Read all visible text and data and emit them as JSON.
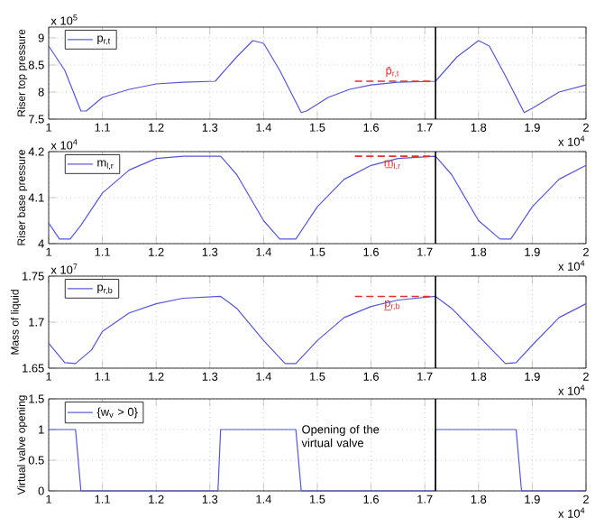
{
  "chart_data": [
    {
      "type": "line",
      "ylabel": "Riser top pressure",
      "xlim": [
        1,
        2
      ],
      "ylim": [
        7.5,
        9.2
      ],
      "xticks": [
        1,
        1.1,
        1.2,
        1.3,
        1.4,
        1.5,
        1.6,
        1.7,
        1.8,
        1.9,
        2
      ],
      "yticks": [
        7.5,
        8,
        8.5,
        9
      ],
      "grid": true,
      "legend": "top left",
      "marker": "none",
      "annotations": [
        "x 10$^{5}$",
        "x 10$^{4}$",
        "p̄$_{r,t}$"
      ],
      "ref_lines": [
        {
          "axis": "x",
          "value": 1.72,
          "color": "#000000"
        }
      ],
      "series": [
        {
          "name": "p$_{r,t}$",
          "color": "#5555dd",
          "x": [
            1.0,
            1.03,
            1.06,
            1.07,
            1.1,
            1.15,
            1.2,
            1.25,
            1.31,
            1.35,
            1.38,
            1.4,
            1.43,
            1.47,
            1.48,
            1.52,
            1.56,
            1.6,
            1.65,
            1.72,
            1.76,
            1.8,
            1.82,
            1.85,
            1.885,
            1.9,
            1.95,
            2.0
          ],
          "values": [
            8.85,
            8.4,
            7.65,
            7.65,
            7.9,
            8.05,
            8.15,
            8.18,
            8.2,
            8.65,
            8.95,
            8.9,
            8.4,
            7.62,
            7.65,
            7.9,
            8.05,
            8.13,
            8.18,
            8.2,
            8.65,
            8.95,
            8.85,
            8.3,
            7.62,
            7.7,
            8.0,
            8.13
          ]
        },
        {
          "color": "#e03030",
          "line_style": "dashed",
          "x": [
            1.57,
            1.71
          ],
          "values": [
            8.2,
            8.2
          ]
        }
      ]
    },
    {
      "type": "line",
      "ylabel": "Riser base pressure",
      "xlim": [
        1,
        2
      ],
      "ylim": [
        4,
        4.2
      ],
      "xticks": [
        1,
        1.1,
        1.2,
        1.3,
        1.4,
        1.5,
        1.6,
        1.7,
        1.8,
        1.9,
        2
      ],
      "yticks": [
        4,
        4.1,
        4.2
      ],
      "grid": true,
      "legend": "top left",
      "marker": "none",
      "annotations": [
        "x 10$^{4}$",
        "x 10$^{4}$",
        "m̲$_{l,r}$"
      ],
      "ref_lines": [
        {
          "axis": "x",
          "value": 1.72,
          "color": "#000000"
        }
      ],
      "series": [
        {
          "name": "m$_{l,r}$",
          "color": "#5555dd",
          "x": [
            1.0,
            1.02,
            1.04,
            1.06,
            1.1,
            1.15,
            1.2,
            1.25,
            1.32,
            1.35,
            1.4,
            1.43,
            1.46,
            1.5,
            1.55,
            1.6,
            1.65,
            1.72,
            1.75,
            1.8,
            1.84,
            1.86,
            1.9,
            1.95,
            2.0
          ],
          "values": [
            4.045,
            4.01,
            4.01,
            4.04,
            4.11,
            4.16,
            4.185,
            4.19,
            4.19,
            4.15,
            4.05,
            4.01,
            4.01,
            4.08,
            4.14,
            4.17,
            4.185,
            4.19,
            4.15,
            4.05,
            4.01,
            4.01,
            4.08,
            4.14,
            4.17
          ]
        },
        {
          "color": "#e03030",
          "line_style": "dashed",
          "x": [
            1.57,
            1.71
          ],
          "values": [
            4.19,
            4.19
          ]
        }
      ]
    },
    {
      "type": "line",
      "ylabel": "Mass of liquid",
      "xlim": [
        1,
        2
      ],
      "ylim": [
        1.65,
        1.75
      ],
      "xticks": [
        1,
        1.1,
        1.2,
        1.3,
        1.4,
        1.5,
        1.6,
        1.7,
        1.8,
        1.9,
        2
      ],
      "yticks": [
        1.65,
        1.7,
        1.75
      ],
      "grid": true,
      "legend": "top left",
      "marker": "none",
      "annotations": [
        "x 10$^{7}$",
        "x 10$^{4}$",
        "p̲$_{r,b}$"
      ],
      "ref_lines": [
        {
          "axis": "x",
          "value": 1.72,
          "color": "#000000"
        }
      ],
      "series": [
        {
          "name": "p$_{r,b}$",
          "color": "#5555dd",
          "x": [
            1.0,
            1.03,
            1.05,
            1.08,
            1.1,
            1.15,
            1.2,
            1.25,
            1.32,
            1.35,
            1.4,
            1.44,
            1.46,
            1.5,
            1.55,
            1.6,
            1.65,
            1.72,
            1.75,
            1.8,
            1.85,
            1.87,
            1.9,
            1.95,
            2.0
          ],
          "values": [
            1.677,
            1.656,
            1.655,
            1.67,
            1.69,
            1.71,
            1.72,
            1.726,
            1.728,
            1.715,
            1.68,
            1.655,
            1.655,
            1.68,
            1.705,
            1.717,
            1.724,
            1.728,
            1.715,
            1.685,
            1.655,
            1.656,
            1.675,
            1.705,
            1.72
          ]
        },
        {
          "color": "#e03030",
          "line_style": "dashed",
          "x": [
            1.57,
            1.71
          ],
          "values": [
            1.728,
            1.728
          ]
        }
      ]
    },
    {
      "type": "line",
      "ylabel": "Virtual valve opening",
      "xlim": [
        1,
        2
      ],
      "ylim": [
        0,
        1.5
      ],
      "xticks": [
        1,
        1.1,
        1.2,
        1.3,
        1.4,
        1.5,
        1.6,
        1.7,
        1.8,
        1.9,
        2
      ],
      "yticks": [
        0,
        0.5,
        1,
        1.5
      ],
      "grid": true,
      "legend": "top left",
      "marker": "none",
      "annotations": [
        null,
        "x 10$^{4}$",
        "Opening of the virtual valve"
      ],
      "ref_lines": [
        {
          "axis": "x",
          "value": 1.72,
          "color": "#000000"
        }
      ],
      "series": [
        {
          "name": "{w$_{v}$ > 0}",
          "color": "#5555dd",
          "x": [
            1.0,
            1.05,
            1.06,
            1.315,
            1.32,
            1.46,
            1.47,
            1.72,
            1.72,
            1.87,
            1.88,
            2.0
          ],
          "values": [
            1,
            1,
            0,
            0,
            1,
            1,
            0,
            0,
            1,
            1,
            0,
            0
          ]
        }
      ]
    }
  ]
}
